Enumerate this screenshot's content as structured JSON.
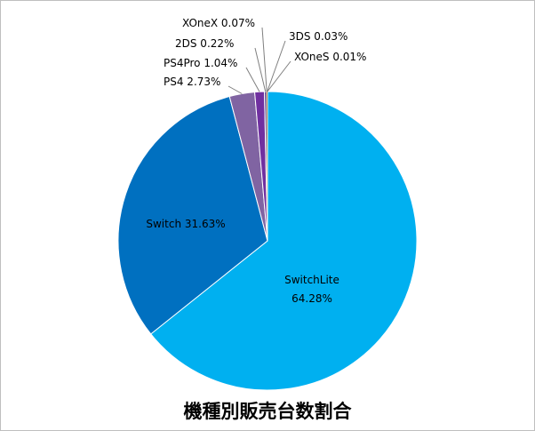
{
  "chart_data": {
    "type": "pie",
    "title": "機種別販売台数割合",
    "unit": "%",
    "slices": [
      {
        "label": "SwitchLite",
        "value": 64.28,
        "color": "#00b0f0"
      },
      {
        "label": "Switch",
        "value": 31.63,
        "color": "#0070c0"
      },
      {
        "label": "PS4",
        "value": 2.73,
        "color": "#8064a2"
      },
      {
        "label": "PS4Pro",
        "value": 1.04,
        "color": "#7030a0"
      },
      {
        "label": "2DS",
        "value": 0.22,
        "color": "#4b3c8c"
      },
      {
        "label": "XOneX",
        "value": 0.07,
        "color": "#c0504d"
      },
      {
        "label": "3DS",
        "value": 0.03,
        "color": "#92d050"
      },
      {
        "label": "XOneS",
        "value": 0.01,
        "color": "#ffc000"
      }
    ],
    "data_labels": [
      {
        "name": "SwitchLite",
        "pct": "64.28%"
      },
      {
        "name": "Switch",
        "pct": "31.63%"
      },
      {
        "name": "PS4",
        "pct": "2.73%"
      },
      {
        "name": "PS4Pro",
        "pct": "1.04%"
      },
      {
        "name": "2DS",
        "pct": "0.22%"
      },
      {
        "name": "XOneX",
        "pct": "0.07%"
      },
      {
        "name": "3DS",
        "pct": "0.03%"
      },
      {
        "name": "XOneS",
        "pct": "0.01%"
      }
    ]
  }
}
